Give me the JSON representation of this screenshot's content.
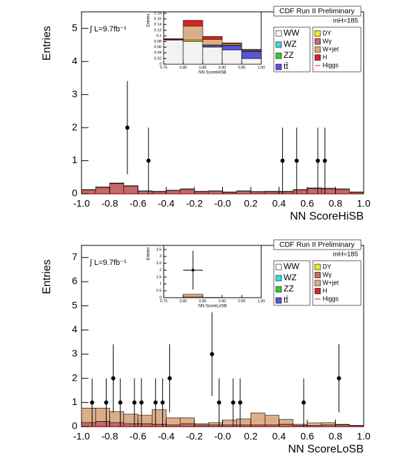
{
  "chart_data": [
    {
      "type": "histogram",
      "header": "CDF Run II Preliminary",
      "mass_label": "mH=185",
      "lumi": "∫ L=9.7fb⁻¹",
      "xlabel": "NN ScoreHiSB",
      "ylabel": "Entries",
      "legend": "top-right",
      "bins": [
        -1.0,
        -0.9,
        -0.8,
        -0.7,
        -0.6,
        -0.5,
        -0.4,
        -0.3,
        -0.2,
        -0.1,
        0.0,
        0.1,
        0.2,
        0.3,
        0.4,
        0.5,
        0.6,
        0.7,
        0.8,
        0.9,
        1.0
      ],
      "xlim": [
        -1.0,
        1.0
      ],
      "xticks": [
        {
          "value": -1.0,
          "label": "-1.0"
        },
        -0.8,
        -0.6,
        -0.4,
        -0.2,
        {
          "value": 0,
          "label": "-0.0"
        },
        0.2,
        0.4,
        0.6,
        0.8,
        {
          "value": 1.0,
          "label": "1.0"
        }
      ],
      "ylim": [
        0,
        5.5
      ],
      "yticks": [
        0,
        1,
        2,
        3,
        4,
        5
      ],
      "series": [
        {
          "name": "WW",
          "color": "#ffffff",
          "values": [
            0.01,
            0.01,
            0.01,
            0.01,
            0.01,
            0.01,
            0.01,
            0.01,
            0.01,
            0.01,
            0.01,
            0.01,
            0.01,
            0.01,
            0.01,
            0.01,
            0.01,
            0.01,
            0.01,
            0.01
          ]
        },
        {
          "name": "WZ",
          "color": "#33e0e0",
          "values": [
            0,
            0,
            0,
            0,
            0,
            0,
            0,
            0,
            0,
            0,
            0,
            0,
            0,
            0,
            0,
            0,
            0,
            0,
            0,
            0
          ]
        },
        {
          "name": "ZZ",
          "color": "#33cc33",
          "values": [
            0,
            0,
            0,
            0,
            0,
            0,
            0,
            0,
            0,
            0,
            0,
            0,
            0,
            0,
            0,
            0,
            0,
            0,
            0,
            0
          ]
        },
        {
          "name": "tt̄",
          "color": "#5555dd",
          "values": [
            0,
            0,
            0,
            0,
            0,
            0,
            0,
            0,
            0,
            0,
            0,
            0,
            0,
            0,
            0,
            0,
            0,
            0,
            0,
            0
          ]
        },
        {
          "name": "DY",
          "color": "#eeee22",
          "values": [
            0,
            0,
            0,
            0,
            0,
            0,
            0,
            0,
            0,
            0,
            0,
            0,
            0,
            0,
            0,
            0,
            0,
            0,
            0,
            0
          ]
        },
        {
          "name": "Wγ",
          "color": "#c86868",
          "values": [
            0.1,
            0.18,
            0.3,
            0.22,
            0.06,
            0.05,
            0.08,
            0.12,
            0.05,
            0.06,
            0.03,
            0.06,
            0.04,
            0.05,
            0.05,
            0.1,
            0.15,
            0.14,
            0.12,
            0.03
          ]
        },
        {
          "name": "W+jet",
          "color": "#dcae88",
          "values": [
            0.02,
            0.02,
            0.02,
            0.02,
            0.02,
            0.02,
            0.02,
            0.02,
            0.02,
            0.02,
            0.02,
            0.02,
            0.02,
            0.02,
            0.02,
            0.02,
            0.02,
            0.02,
            0.02,
            0.02
          ]
        },
        {
          "name": "H",
          "color": "#dd2222",
          "values": [
            0,
            0,
            0,
            0,
            0,
            0,
            0,
            0,
            0,
            0,
            0,
            0,
            0,
            0,
            0,
            0,
            0,
            0,
            0,
            0
          ]
        },
        {
          "name": "Higgs",
          "color": "#dd2222",
          "style": "line",
          "values": [
            0.01,
            0.01,
            0.01,
            0.01,
            0.01,
            0.01,
            0.01,
            0.01,
            0.01,
            0.01,
            0.01,
            0.01,
            0.01,
            0.01,
            0.01,
            0.01,
            0.01,
            0.01,
            0.01,
            0.01
          ]
        }
      ],
      "points": {
        "x": [
          -0.675,
          -0.525,
          0.425,
          0.525,
          0.675,
          0.725
        ],
        "y": [
          2,
          1,
          1,
          1,
          1,
          1
        ],
        "yerr": [
          1.41,
          1,
          1,
          1,
          1,
          1
        ]
      }
    },
    {
      "type": "histogram",
      "xlabel": "NN ScoreHiSB",
      "ylabel": "Entries",
      "bins": [
        0.75,
        0.8,
        0.85,
        0.9,
        0.95,
        1.0
      ],
      "xlim": [
        0.75,
        1.0
      ],
      "xticks": [
        0.75,
        {
          "value": 0.8,
          "label": "0.80"
        },
        0.85,
        {
          "value": 0.9,
          "label": "0.90"
        },
        0.95,
        {
          "value": 1.0,
          "label": "1.00"
        }
      ],
      "ylim": [
        0,
        0.185
      ],
      "yticks": [
        0,
        0.02,
        0.04,
        0.06,
        0.08,
        0.1,
        0.12,
        0.14,
        0.16,
        0.18
      ],
      "series": [
        {
          "name": "WW",
          "color": "#f2f2f2",
          "values": [
            0.085,
            0.08,
            0.06,
            0.05,
            0.02
          ]
        },
        {
          "name": "tt̄",
          "color": "#5555dd",
          "values": [
            0,
            0,
            0.005,
            0.015,
            0.025
          ]
        },
        {
          "name": "DY",
          "color": "#eeee22",
          "values": [
            0,
            0.005,
            0.003,
            0.002,
            0.002
          ]
        },
        {
          "name": "W+jet",
          "color": "#dcae88",
          "values": [
            0.002,
            0.05,
            0.02,
            0.005,
            0.003
          ]
        },
        {
          "name": "H",
          "color": "#dd2222",
          "values": [
            0.003,
            0.02,
            0.01,
            0.003,
            0.002
          ]
        }
      ]
    },
    {
      "type": "histogram",
      "header": "CDF Run II Preliminary",
      "mass_label": "mH=185",
      "lumi": "∫ L=9.7fb⁻¹",
      "xlabel": "NN ScoreLoSB",
      "ylabel": "Entries",
      "legend": "top-right",
      "bins": [
        -1.0,
        -0.9,
        -0.8,
        -0.7,
        -0.6,
        -0.5,
        -0.4,
        -0.3,
        -0.2,
        -0.1,
        0.0,
        0.1,
        0.2,
        0.3,
        0.4,
        0.5,
        0.6,
        0.7,
        0.8,
        0.9,
        1.0
      ],
      "xlim": [
        -1.0,
        1.0
      ],
      "xticks": [
        {
          "value": -1.0,
          "label": "-1.0"
        },
        -0.8,
        -0.6,
        -0.4,
        -0.2,
        {
          "value": 0,
          "label": "-0.0"
        },
        0.2,
        0.4,
        0.6,
        0.8,
        {
          "value": 1.0,
          "label": "1.0"
        }
      ],
      "ylim": [
        0,
        7.5
      ],
      "yticks": [
        0,
        1,
        2,
        3,
        4,
        5,
        6,
        7
      ],
      "series": [
        {
          "name": "WW",
          "color": "#ffffff",
          "values": [
            0.02,
            0.02,
            0.02,
            0.02,
            0.02,
            0.02,
            0.02,
            0.02,
            0.02,
            0.02,
            0.02,
            0.02,
            0.02,
            0.02,
            0.02,
            0.02,
            0.02,
            0.02,
            0.02,
            0.02
          ]
        },
        {
          "name": "WZ",
          "color": "#33e0e0",
          "values": [
            0,
            0,
            0,
            0,
            0,
            0,
            0,
            0,
            0,
            0,
            0,
            0,
            0,
            0,
            0,
            0,
            0,
            0,
            0,
            0
          ]
        },
        {
          "name": "ZZ",
          "color": "#33cc33",
          "values": [
            0,
            0,
            0,
            0,
            0,
            0,
            0,
            0,
            0,
            0,
            0,
            0,
            0,
            0,
            0,
            0,
            0,
            0,
            0,
            0
          ]
        },
        {
          "name": "tt̄",
          "color": "#5555dd",
          "values": [
            0,
            0,
            0,
            0,
            0,
            0,
            0,
            0,
            0,
            0,
            0,
            0,
            0,
            0,
            0,
            0,
            0,
            0,
            0,
            0
          ]
        },
        {
          "name": "DY",
          "color": "#eeee22",
          "values": [
            0,
            0,
            0,
            0,
            0,
            0,
            0,
            0,
            0,
            0,
            0,
            0,
            0,
            0,
            0,
            0,
            0,
            0,
            0,
            0
          ]
        },
        {
          "name": "Wγ",
          "color": "#c86868",
          "values": [
            0.15,
            0.2,
            0.15,
            0.1,
            0.1,
            0.08,
            0.05,
            0.1,
            0.05,
            0.05,
            0.05,
            0.05,
            0.05,
            0.05,
            0.08,
            0.03,
            0.03,
            0.05,
            0.05,
            0.02
          ]
        },
        {
          "name": "W+jet",
          "color": "#dcae88",
          "values": [
            0.6,
            0.55,
            0.45,
            0.4,
            0.35,
            0.6,
            0.3,
            0.25,
            0.05,
            0.1,
            0.2,
            0.25,
            0.5,
            0.4,
            0.2,
            0.05,
            0.1,
            0.1,
            0.03,
            0.01
          ]
        },
        {
          "name": "H",
          "color": "#dd2222",
          "values": [
            0,
            0,
            0,
            0,
            0,
            0,
            0,
            0,
            0,
            0,
            0,
            0,
            0,
            0,
            0,
            0,
            0,
            0,
            0,
            0
          ]
        },
        {
          "name": "Higgs",
          "color": "#dd2222",
          "style": "line",
          "values": [
            0.01,
            0.01,
            0.01,
            0.01,
            0.01,
            0.01,
            0.01,
            0.01,
            0.01,
            0.01,
            0.01,
            0.01,
            0.01,
            0.01,
            0.01,
            0.01,
            0.01,
            0.01,
            0.01,
            0.01
          ]
        }
      ],
      "points": {
        "x": [
          -0.925,
          -0.825,
          -0.775,
          -0.725,
          -0.625,
          -0.575,
          -0.475,
          -0.425,
          -0.375,
          -0.075,
          -0.025,
          0.075,
          0.125,
          0.575,
          0.825
        ],
        "y": [
          1,
          1,
          2,
          1,
          1,
          1,
          1,
          1,
          2,
          3,
          1,
          1,
          1,
          1,
          2
        ],
        "yerr": [
          1,
          1,
          1.41,
          1,
          1,
          1,
          1,
          1,
          1.41,
          1.73,
          1,
          1,
          1,
          1,
          1.41
        ]
      }
    },
    {
      "type": "histogram",
      "xlabel": "NN ScoreLoSB",
      "ylabel": "Entries",
      "bins": [
        0.75,
        0.8,
        0.85,
        0.9,
        0.95,
        1.0
      ],
      "xlim": [
        0.75,
        1.0
      ],
      "xticks": [
        0.75,
        {
          "value": 0.8,
          "label": "0.80"
        },
        0.85,
        {
          "value": 0.9,
          "label": "0.90"
        },
        0.95,
        {
          "value": 1.0,
          "label": "1.00"
        }
      ],
      "ylim": [
        0,
        3.8
      ],
      "yticks": [
        0,
        0.5,
        1,
        1.5,
        2,
        2.5,
        3,
        3.5
      ],
      "series": [
        {
          "name": "WW",
          "color": "#f2f2f2",
          "values": [
            0,
            0.05,
            0,
            0,
            0
          ]
        },
        {
          "name": "W+jet",
          "color": "#dcae88",
          "values": [
            0,
            0.2,
            0.02,
            0,
            0
          ]
        }
      ],
      "points": {
        "x": [
          0.825
        ],
        "y": [
          2
        ],
        "yerr": [
          1.41
        ],
        "xerr": [
          0.025
        ]
      }
    }
  ]
}
